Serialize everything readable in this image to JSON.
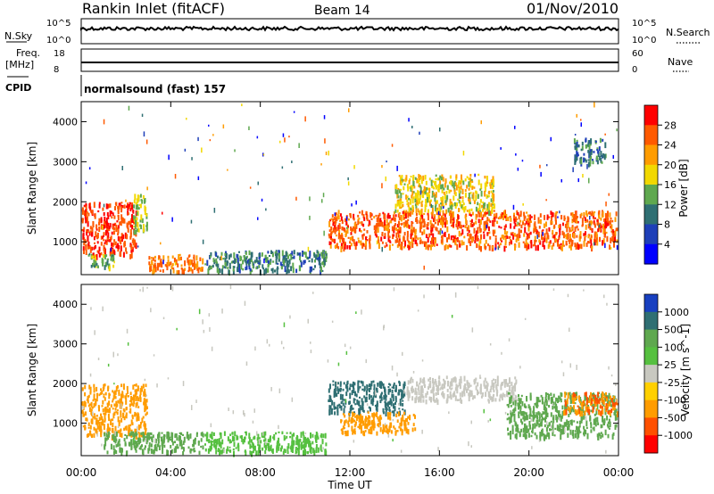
{
  "header": {
    "station": "Rankin Inlet (fitACF)",
    "beam": "Beam 14",
    "date": "01/Nov/2010"
  },
  "strips": {
    "nsky_label": "N.Sky",
    "nsky_ticks": [
      "10^5",
      "10^0"
    ],
    "nsearch_label": "N.Search",
    "nsearch_ticks": [
      "10^5",
      "10^0"
    ],
    "freq_label_1": "Freq.",
    "freq_label_2": "[MHz]",
    "freq_ticks": [
      "18",
      "8"
    ],
    "nave_label": "Nave",
    "nave_ticks": [
      "60",
      "0"
    ],
    "cpid_label": "CPID",
    "cpid_value": "normalsound (fast) 157"
  },
  "chart_data": [
    {
      "type": "heatmap",
      "panel": "power",
      "ylabel": "Slant Range [km]",
      "ylim": [
        180,
        4500
      ],
      "yticks": [
        1000,
        2000,
        3000,
        4000
      ],
      "colorbar_label": "Power [dB]",
      "colorbar_ticks": [
        "28",
        "24",
        "20",
        "16",
        "12",
        "8",
        "4"
      ],
      "colorbar_colors": [
        "#ff0000",
        "#ff5a00",
        "#ff9c00",
        "#f2d800",
        "#5fa84f",
        "#2f6f73",
        "#1e3fb8",
        "#0000ff"
      ],
      "regions": [
        {
          "x0": 0,
          "x1": 2.5,
          "y0": 600,
          "y1": 2000,
          "level": 26
        },
        {
          "x0": 0.3,
          "x1": 1.5,
          "y0": 300,
          "y1": 700,
          "level": 12
        },
        {
          "x0": 2.3,
          "x1": 3.0,
          "y0": 1200,
          "y1": 2200,
          "level": 14
        },
        {
          "x0": 3.0,
          "x1": 5.5,
          "y0": 200,
          "y1": 700,
          "level": 22
        },
        {
          "x0": 5.5,
          "x1": 11.0,
          "y0": 200,
          "y1": 800,
          "level": 8
        },
        {
          "x0": 11.0,
          "x1": 24.0,
          "y0": 800,
          "y1": 1800,
          "level": 24
        },
        {
          "x0": 14.0,
          "x1": 18.5,
          "y0": 1700,
          "y1": 2700,
          "level": 16
        },
        {
          "x0": 22.0,
          "x1": 23.5,
          "y0": 2900,
          "y1": 3600,
          "level": 8
        }
      ]
    },
    {
      "type": "heatmap",
      "panel": "velocity",
      "ylabel": "Slant Range [km]",
      "ylim": [
        180,
        4500
      ],
      "yticks": [
        1000,
        2000,
        3000,
        4000
      ],
      "colorbar_label": "Velocity [m s^-1]",
      "colorbar_ticks": [
        "1000",
        "500",
        "100",
        "25",
        "-25",
        "-100",
        "-500",
        "-1000"
      ],
      "colorbar_colors": [
        "#1840c0",
        "#2f6f73",
        "#5fa84f",
        "#56c040",
        "#c8c8c0",
        "#ffd000",
        "#ff9c00",
        "#ff5000",
        "#ff0000"
      ],
      "regions": [
        {
          "x0": 0,
          "x1": 3.0,
          "y0": 600,
          "y1": 2000,
          "level": -150
        },
        {
          "x0": 1.0,
          "x1": 5.5,
          "y0": 200,
          "y1": 800,
          "level": 150
        },
        {
          "x0": 5.5,
          "x1": 11.0,
          "y0": 200,
          "y1": 800,
          "level": 60
        },
        {
          "x0": 11.0,
          "x1": 14.5,
          "y0": 1200,
          "y1": 2100,
          "level": 700
        },
        {
          "x0": 11.5,
          "x1": 15.0,
          "y0": 700,
          "y1": 1300,
          "level": -400
        },
        {
          "x0": 14.5,
          "x1": 19.5,
          "y0": 1500,
          "y1": 2200,
          "level": 0
        },
        {
          "x0": 19.0,
          "x1": 24.0,
          "y0": 600,
          "y1": 1800,
          "level": 200
        },
        {
          "x0": 21.5,
          "x1": 24.0,
          "y0": 1200,
          "y1": 1800,
          "level": -500
        }
      ]
    }
  ],
  "xaxis": {
    "label": "Time UT",
    "ticks": [
      "00:00",
      "04:00",
      "08:00",
      "12:00",
      "16:00",
      "20:00",
      "00:00"
    ]
  }
}
